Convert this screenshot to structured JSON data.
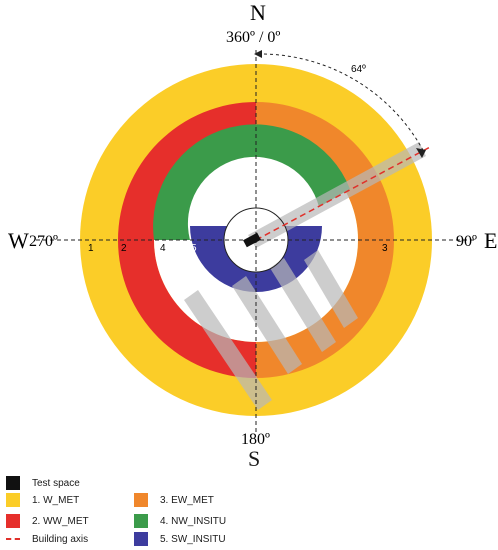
{
  "compass": {
    "north": "N",
    "north_deg": "360º / 0º",
    "south": "S",
    "south_deg": "180º",
    "east": "E",
    "east_deg": "90º",
    "west": "W",
    "west_deg": "270º",
    "angle_label": "64º"
  },
  "ring_numbers": [
    "1",
    "2",
    "3",
    "4",
    "5"
  ],
  "colors": {
    "w_met": "#fbcd28",
    "ww_met": "#e62f2b",
    "ew_met": "#f0872b",
    "nw_insitu": "#3b9b4a",
    "sw_insitu": "#3d3c9e",
    "test_space": "#111111",
    "building_axis": "#e0302a",
    "building_shadow": "#b8b8b8"
  },
  "legend": {
    "test_space": "Test space",
    "w_met": "1. W_MET",
    "ww_met": "2. WW_MET",
    "ew_met": "3. EW_MET",
    "nw_insitu": "4. NW_INSITU",
    "sw_insitu": "5. SW_INSITU",
    "building_axis": "Building axis"
  }
}
